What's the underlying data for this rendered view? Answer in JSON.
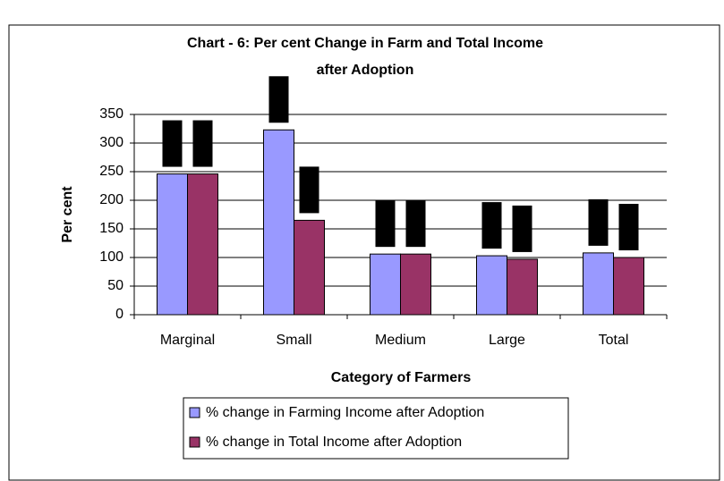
{
  "chart_data": {
    "type": "bar",
    "title": [
      "Chart - 6: Per cent Change in Farm and Total Income",
      "after Adoption"
    ],
    "x_label": "Category of Farmers",
    "y_label": "Per cent",
    "categories": [
      "Marginal",
      "Small",
      "Medium",
      "Large",
      "Total"
    ],
    "series": [
      {
        "name": "% change in Farming Income after Adoption",
        "color": "#9999ff",
        "values": [
          246,
          323,
          106,
          103,
          108
        ]
      },
      {
        "name": "% change in Total Income after Adoption",
        "color": "#993366",
        "values": [
          246,
          165,
          106,
          97,
          100
        ]
      }
    ],
    "ylim": [
      0,
      350
    ],
    "yticks": [
      0,
      50,
      100,
      150,
      200,
      250,
      300,
      350
    ],
    "grid": true
  }
}
